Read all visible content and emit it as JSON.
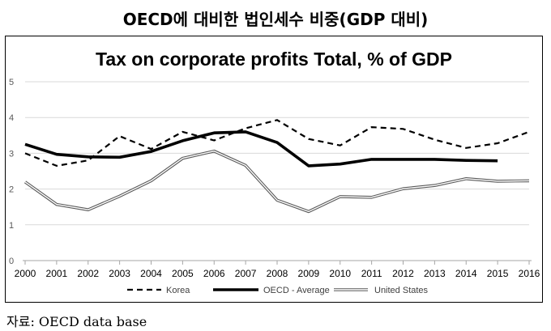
{
  "page_title": "OECD에 대비한 법인세수 비중(GDP 대비)",
  "source_label": "자료: OECD data base",
  "chart_data": {
    "type": "line",
    "title": "Tax on corporate profits Total, % of GDP",
    "xlabel": "",
    "ylabel": "",
    "x": [
      "2000",
      "2001",
      "2002",
      "2003",
      "2004",
      "2005",
      "2006",
      "2007",
      "2008",
      "2009",
      "2010",
      "2011",
      "2012",
      "2013",
      "2014",
      "2015",
      "2016"
    ],
    "ylim": [
      0,
      5
    ],
    "yticks": [
      0,
      1,
      2,
      3,
      4,
      5
    ],
    "grid": true,
    "legend_position": "bottom",
    "series": [
      {
        "name": "Korea",
        "style": "dashed",
        "color": "#000000",
        "values": [
          3.0,
          2.65,
          2.8,
          3.48,
          3.12,
          3.6,
          3.36,
          3.7,
          3.93,
          3.4,
          3.22,
          3.73,
          3.68,
          3.38,
          3.15,
          3.28,
          3.6
        ]
      },
      {
        "name": "OECD - Average",
        "style": "solid-thick",
        "color": "#000000",
        "values": [
          3.25,
          2.97,
          2.9,
          2.89,
          3.05,
          3.35,
          3.57,
          3.6,
          3.3,
          2.65,
          2.7,
          2.83,
          2.83,
          2.83,
          2.8,
          2.79,
          null
        ]
      },
      {
        "name": "United States",
        "style": "double-line",
        "color": "#8a8a8a",
        "values": [
          2.2,
          1.57,
          1.42,
          1.8,
          2.23,
          2.86,
          3.06,
          2.66,
          1.69,
          1.37,
          1.79,
          1.77,
          2.01,
          2.1,
          2.29,
          2.22,
          2.23
        ]
      }
    ]
  }
}
